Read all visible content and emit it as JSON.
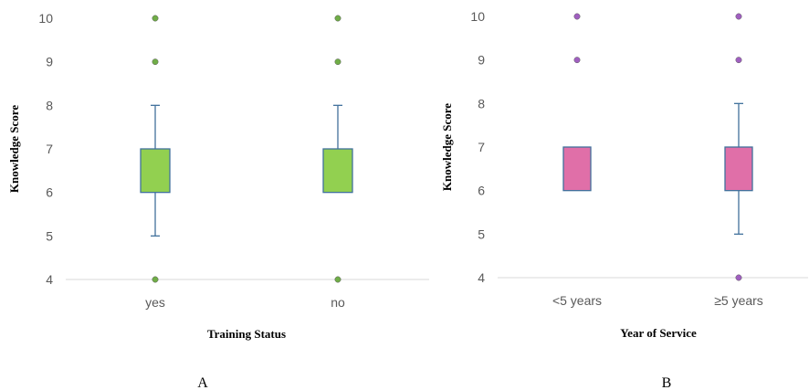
{
  "chart_data": [
    {
      "type": "box",
      "panel_label": "A",
      "xlabel": "Training Status",
      "ylabel": "Knowledge  Score",
      "ylim": [
        4,
        10
      ],
      "yticks": [
        4,
        5,
        6,
        7,
        8,
        9,
        10
      ],
      "categories": [
        "yes",
        "no"
      ],
      "box_color": "#92D050",
      "box_stroke": "#41719C",
      "outlier_color": "#70AD47",
      "boxes": [
        {
          "category": "yes",
          "whisker_low": 5,
          "q1": 6,
          "median": 7,
          "q3": 7,
          "whisker_high": 8,
          "outliers": [
            4,
            9,
            10
          ]
        },
        {
          "category": "no",
          "whisker_low": 6,
          "q1": 6,
          "median": 7,
          "q3": 7,
          "whisker_high": 8,
          "outliers": [
            4,
            9,
            10
          ]
        }
      ]
    },
    {
      "type": "box",
      "panel_label": "B",
      "xlabel": "Year of Service",
      "ylabel": "Knowledge  Score",
      "ylim": [
        4,
        10
      ],
      "yticks": [
        4,
        5,
        6,
        7,
        8,
        9,
        10
      ],
      "categories": [
        "<5 years",
        "≥5 years"
      ],
      "box_color": "#E06FA8",
      "box_stroke": "#41719C",
      "outlier_color": "#A05FC0",
      "boxes": [
        {
          "category": "<5 years",
          "whisker_low": 6,
          "q1": 6,
          "median": 7,
          "q3": 7,
          "whisker_high": 7,
          "outliers": [
            9,
            10
          ]
        },
        {
          "category": "≥5 years",
          "whisker_low": 5,
          "q1": 6,
          "median": 7,
          "q3": 7,
          "whisker_high": 8,
          "outliers": [
            4,
            9,
            10
          ]
        }
      ]
    }
  ]
}
